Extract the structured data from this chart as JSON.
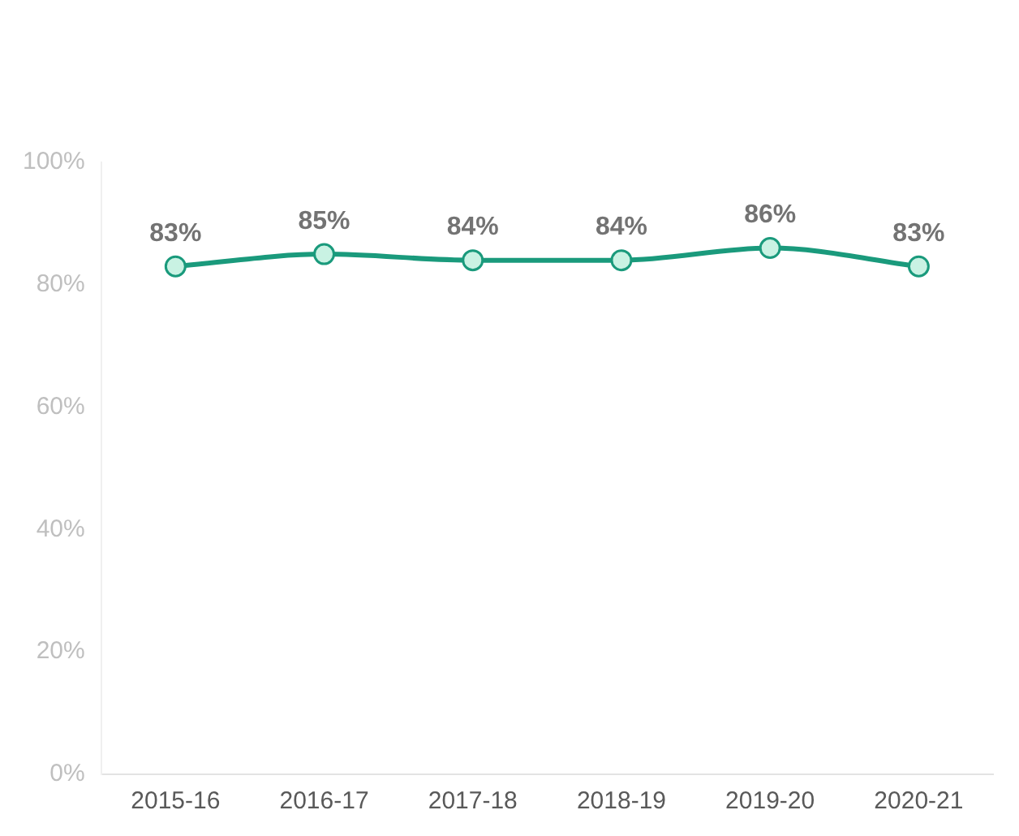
{
  "chart_data": {
    "type": "line",
    "categories": [
      "2015-16",
      "2016-17",
      "2017-18",
      "2018-19",
      "2019-20",
      "2020-21"
    ],
    "series": [
      {
        "color": "#1a9a7c",
        "values": [
          83,
          85,
          84,
          84,
          86,
          83
        ],
        "value_labels": [
          "83%",
          "85%",
          "84%",
          "84%",
          "86%",
          "83%"
        ]
      }
    ],
    "ylim": [
      0,
      100
    ],
    "yticks": [
      {
        "value": 0,
        "label": "0%"
      },
      {
        "value": 20,
        "label": "20%"
      },
      {
        "value": 40,
        "label": "40%"
      },
      {
        "value": 60,
        "label": "60%"
      },
      {
        "value": 80,
        "label": "80%"
      },
      {
        "value": 100,
        "label": "100%"
      }
    ],
    "grid": false,
    "legend": false,
    "marker": "circle",
    "line_style": "solid"
  }
}
